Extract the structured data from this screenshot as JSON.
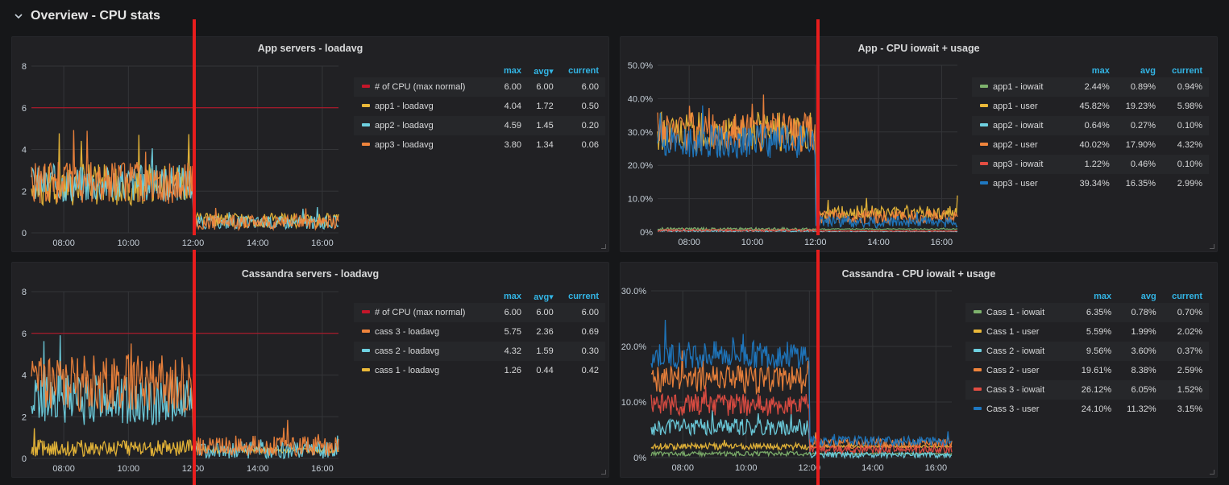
{
  "row": {
    "title": "Overview - CPU stats"
  },
  "panels": [
    {
      "title": "App servers - loadavg",
      "legend": {
        "headers": {
          "max": "max",
          "avg": "avg▾",
          "current": "current"
        },
        "items": [
          {
            "name": "# of CPU (max normal)",
            "color": "#c4162a",
            "max": "6.00",
            "avg": "6.00",
            "current": "6.00"
          },
          {
            "name": "app1 - loadavg",
            "color": "#eab839",
            "max": "4.04",
            "avg": "1.72",
            "current": "0.50"
          },
          {
            "name": "app2 - loadavg",
            "color": "#6ed0e0",
            "max": "4.59",
            "avg": "1.45",
            "current": "0.20"
          },
          {
            "name": "app3 - loadavg",
            "color": "#ef843c",
            "max": "3.80",
            "avg": "1.34",
            "current": "0.06"
          }
        ]
      },
      "chart_data": {
        "type": "line",
        "y_ticks": [
          "0",
          "2",
          "4",
          "6",
          "8"
        ],
        "x_ticks": [
          "08:00",
          "10:00",
          "12:00",
          "14:00",
          "16:00"
        ],
        "ylim": [
          0,
          8
        ],
        "xlim_hours": [
          7,
          16.5
        ],
        "threshold": 6,
        "series": [
          {
            "name": "app1 - loadavg",
            "color": "#eab839",
            "before": 2.3,
            "after": 0.6,
            "noise": 1.0
          },
          {
            "name": "app2 - loadavg",
            "color": "#6ed0e0",
            "before": 2.4,
            "after": 0.5,
            "noise": 0.9
          },
          {
            "name": "app3 - loadavg",
            "color": "#ef843c",
            "before": 2.4,
            "after": 0.5,
            "noise": 1.0
          }
        ]
      }
    },
    {
      "title": "App - CPU iowait + usage",
      "legend": {
        "headers": {
          "max": "max",
          "avg": "avg",
          "current": "current"
        },
        "items": [
          {
            "name": "app1 - iowait",
            "color": "#7eb26d",
            "max": "2.44%",
            "avg": "0.89%",
            "current": "0.94%"
          },
          {
            "name": "app1 - user",
            "color": "#eab839",
            "max": "45.82%",
            "avg": "19.23%",
            "current": "5.98%"
          },
          {
            "name": "app2 - iowait",
            "color": "#6ed0e0",
            "max": "0.64%",
            "avg": "0.27%",
            "current": "0.10%"
          },
          {
            "name": "app2 - user",
            "color": "#ef843c",
            "max": "40.02%",
            "avg": "17.90%",
            "current": "4.32%"
          },
          {
            "name": "app3 - iowait",
            "color": "#e24d42",
            "max": "1.22%",
            "avg": "0.46%",
            "current": "0.10%"
          },
          {
            "name": "app3 - user",
            "color": "#1f78c1",
            "max": "39.34%",
            "avg": "16.35%",
            "current": "2.99%"
          }
        ]
      },
      "chart_data": {
        "type": "line",
        "y_ticks": [
          "0%",
          "10.0%",
          "20.0%",
          "30.0%",
          "40.0%",
          "50.0%"
        ],
        "x_ticks": [
          "08:00",
          "10:00",
          "12:00",
          "14:00",
          "16:00"
        ],
        "ylim": [
          0,
          50
        ],
        "xlim_hours": [
          7,
          16.5
        ],
        "series": [
          {
            "name": "app1 - iowait",
            "color": "#7eb26d",
            "before": 0.9,
            "after": 0.9,
            "noise": 0.4
          },
          {
            "name": "app1 - user",
            "color": "#eab839",
            "before": 30,
            "after": 6,
            "noise": 6
          },
          {
            "name": "app2 - iowait",
            "color": "#6ed0e0",
            "before": 0.3,
            "after": 0.2,
            "noise": 0.2
          },
          {
            "name": "app2 - user",
            "color": "#ef843c",
            "before": 30,
            "after": 4.5,
            "noise": 6
          },
          {
            "name": "app3 - iowait",
            "color": "#e24d42",
            "before": 0.5,
            "after": 0.3,
            "noise": 0.3
          },
          {
            "name": "app3 - user",
            "color": "#1f78c1",
            "before": 27,
            "after": 3,
            "noise": 5
          }
        ]
      }
    },
    {
      "title": "Cassandra servers - loadavg",
      "legend": {
        "headers": {
          "max": "max",
          "avg": "avg▾",
          "current": "current"
        },
        "items": [
          {
            "name": "# of CPU (max normal)",
            "color": "#c4162a",
            "max": "6.00",
            "avg": "6.00",
            "current": "6.00"
          },
          {
            "name": "cass 3 - loadavg",
            "color": "#ef843c",
            "max": "5.75",
            "avg": "2.36",
            "current": "0.69"
          },
          {
            "name": "cass 2 - loadavg",
            "color": "#6ed0e0",
            "max": "4.32",
            "avg": "1.59",
            "current": "0.30"
          },
          {
            "name": "cass 1 - loadavg",
            "color": "#eab839",
            "max": "1.26",
            "avg": "0.44",
            "current": "0.42"
          }
        ]
      },
      "chart_data": {
        "type": "line",
        "y_ticks": [
          "0",
          "2",
          "4",
          "6",
          "8"
        ],
        "x_ticks": [
          "08:00",
          "10:00",
          "12:00",
          "14:00",
          "16:00"
        ],
        "ylim": [
          0,
          8
        ],
        "xlim_hours": [
          7,
          16.5
        ],
        "threshold": 6,
        "series": [
          {
            "name": "cass 1 - loadavg",
            "color": "#eab839",
            "before": 0.5,
            "after": 0.4,
            "noise": 0.4
          },
          {
            "name": "cass 2 - loadavg",
            "color": "#6ed0e0",
            "before": 2.8,
            "after": 0.4,
            "noise": 1.2
          },
          {
            "name": "cass 3 - loadavg",
            "color": "#ef843c",
            "before": 3.6,
            "after": 0.6,
            "noise": 1.4
          }
        ]
      }
    },
    {
      "title": "Cassandra - CPU iowait + usage",
      "legend": {
        "headers": {
          "max": "max",
          "avg": "avg",
          "current": "current"
        },
        "items": [
          {
            "name": "Cass 1 - iowait",
            "color": "#7eb26d",
            "max": "6.35%",
            "avg": "0.78%",
            "current": "0.70%"
          },
          {
            "name": "Cass 1 - user",
            "color": "#eab839",
            "max": "5.59%",
            "avg": "1.99%",
            "current": "2.02%"
          },
          {
            "name": "Cass 2 - iowait",
            "color": "#6ed0e0",
            "max": "9.56%",
            "avg": "3.60%",
            "current": "0.37%"
          },
          {
            "name": "Cass 2 - user",
            "color": "#ef843c",
            "max": "19.61%",
            "avg": "8.38%",
            "current": "2.59%"
          },
          {
            "name": "Cass 3 - iowait",
            "color": "#e24d42",
            "max": "26.12%",
            "avg": "6.05%",
            "current": "1.52%"
          },
          {
            "name": "Cass 3 - user",
            "color": "#1f78c1",
            "max": "24.10%",
            "avg": "11.32%",
            "current": "3.15%"
          }
        ]
      },
      "chart_data": {
        "type": "line",
        "y_ticks": [
          "0%",
          "10.0%",
          "20.0%",
          "30.0%"
        ],
        "x_ticks": [
          "08:00",
          "10:00",
          "12:00",
          "14:00",
          "16:00"
        ],
        "ylim": [
          0,
          30
        ],
        "xlim_hours": [
          7,
          16.5
        ],
        "series": [
          {
            "name": "Cass 1 - iowait",
            "color": "#7eb26d",
            "before": 0.7,
            "after": 0.7,
            "noise": 0.4
          },
          {
            "name": "Cass 1 - user",
            "color": "#eab839",
            "before": 2.0,
            "after": 2.0,
            "noise": 0.6
          },
          {
            "name": "Cass 2 - iowait",
            "color": "#6ed0e0",
            "before": 5.5,
            "after": 0.5,
            "noise": 1.5
          },
          {
            "name": "Cass 2 - user",
            "color": "#ef843c",
            "before": 14,
            "after": 2.5,
            "noise": 2.5
          },
          {
            "name": "Cass 3 - iowait",
            "color": "#e24d42",
            "before": 9.5,
            "after": 1.5,
            "noise": 2
          },
          {
            "name": "Cass 3 - user",
            "color": "#1f78c1",
            "before": 18.5,
            "after": 3,
            "noise": 2.5
          }
        ]
      }
    }
  ]
}
